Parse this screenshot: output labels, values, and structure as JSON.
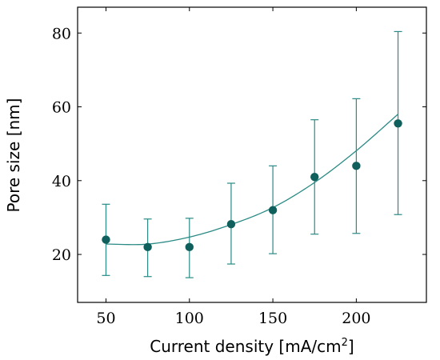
{
  "chart_data": {
    "type": "scatter",
    "title": "",
    "xlabel": "Current density [mA/cm",
    "xlabel_sup": "2",
    "xlabel_end": "]",
    "ylabel": "Pore size [nm]",
    "xlim": [
      33,
      242
    ],
    "ylim": [
      7,
      87
    ],
    "xticks": [
      50,
      100,
      150,
      200
    ],
    "yticks": [
      20,
      40,
      60,
      80
    ],
    "grid": false,
    "legend": "none",
    "colors": {
      "marker": "#0f5f5c",
      "line": "#2a8a85",
      "errorbar": "#2a8a85",
      "axis": "#000000"
    },
    "series": [
      {
        "x": [
          50,
          75,
          100,
          125,
          150,
          175,
          200,
          225
        ],
        "y": [
          24,
          22,
          22,
          28.2,
          32,
          41,
          44,
          55.5
        ],
        "yerr_low": [
          14.3,
          14,
          13.7,
          17.4,
          20.2,
          25.5,
          25.7,
          30.8
        ],
        "yerr_high": [
          33.6,
          29.6,
          29.8,
          39.3,
          44,
          56.5,
          62.2,
          80.4
        ]
      }
    ],
    "fit": {
      "type": "polynomial",
      "x_range": [
        50,
        225
      ],
      "y": [
        22.8,
        22.8,
        24.7,
        28.1,
        32.7,
        39.5,
        48.1,
        58.0
      ]
    }
  }
}
